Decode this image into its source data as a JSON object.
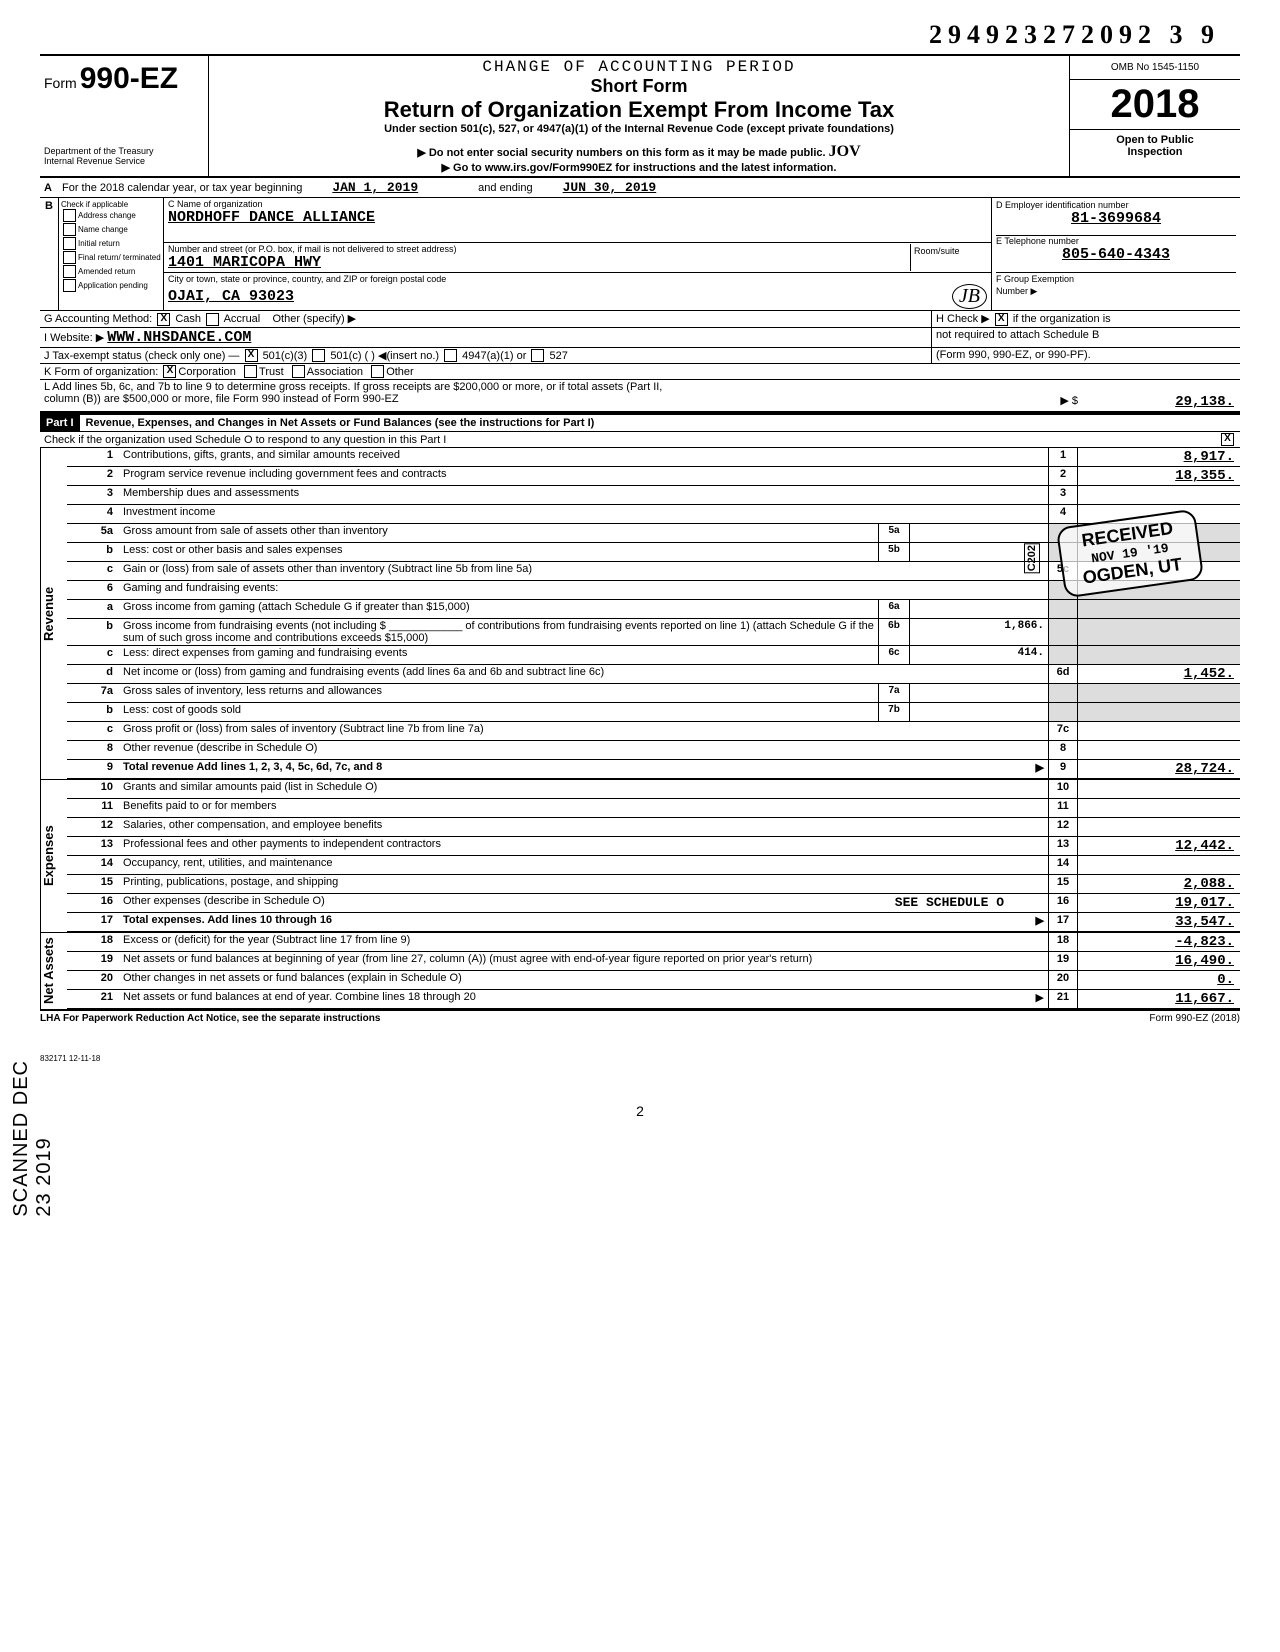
{
  "stamp_number": "294923272092 3  9",
  "header": {
    "form_prefix": "Form",
    "form_no": "990-EZ",
    "change_period": "CHANGE OF ACCOUNTING PERIOD",
    "short_form": "Short Form",
    "title": "Return of Organization Exempt From Income Tax",
    "subtitle": "Under section 501(c), 527, or 4947(a)(1) of the Internal Revenue Code (except private foundations)",
    "warn": "▶ Do not enter social security numbers on this form as it may be made public.",
    "goto": "▶ Go to www.irs.gov/Form990EZ for instructions and the latest information.",
    "dept1": "Department of the Treasury",
    "dept2": "Internal Revenue Service",
    "omb": "OMB No 1545-1150",
    "year": "2018",
    "open": "Open to Public",
    "inspection": "Inspection",
    "handwritten_init": "JOV"
  },
  "lineA": {
    "prefix": "A",
    "text1": "For the 2018 calendar year, or tax year beginning",
    "begin": "JAN 1, 2019",
    "text2": "and ending",
    "end": "JUN 30, 2019"
  },
  "sectionB": {
    "b": "B",
    "check_if": "Check if applicable",
    "opts": [
      "Address change",
      "Name change",
      "Initial return",
      "Final return/ terminated",
      "Amended return",
      "Application pending"
    ],
    "c_label": "C Name of organization",
    "org_name": "NORDHOFF DANCE ALLIANCE",
    "street_label": "Number and street (or P.O. box, if mail is not delivered to street address)",
    "room_label": "Room/suite",
    "street": "1401 MARICOPA HWY",
    "city_label": "City or town, state or province, country, and ZIP or foreign postal code",
    "city": "OJAI, CA  93023",
    "d_label": "D Employer identification number",
    "ein": "81-3699684",
    "e_label": "E Telephone number",
    "phone": "805-640-4343",
    "f_label": "F Group Exemption",
    "f_label2": "Number ▶",
    "hand_init": "JB"
  },
  "lineG": {
    "label": "G  Accounting Method:",
    "cash": "Cash",
    "accrual": "Accrual",
    "other": "Other (specify) ▶"
  },
  "lineH": {
    "text": "H Check ▶",
    "box": "X",
    "text2": "if the organization is",
    "text3": "not required to attach Schedule B"
  },
  "lineI": {
    "label": "I   Website: ▶",
    "val": "WWW.NHSDANCE.COM"
  },
  "lineJ": {
    "label": "J   Tax-exempt status (check only one) —",
    "a": "501(c)(3)",
    "b": "501(c) (",
    "c": ") ◀(insert no.)",
    "d": "4947(a)(1) or",
    "e": "527",
    "tail": "(Form 990, 990-EZ, or 990-PF)."
  },
  "lineK": {
    "label": "K  Form of organization:",
    "a": "Corporation",
    "b": "Trust",
    "c": "Association",
    "d": "Other"
  },
  "lineL": {
    "text": "L  Add lines 5b, 6c, and 7b to line 9 to determine gross receipts. If gross receipts are $200,000 or more, or if total assets (Part II,",
    "text2": "column (B)) are $500,000 or more, file Form 990 instead of Form 990-EZ",
    "arrow": "▶  $",
    "val": "29,138."
  },
  "part1": {
    "label": "Part I",
    "title": "Revenue, Expenses, and Changes in Net Assets or Fund Balances (see the instructions for Part I)",
    "check_text": "Check if the organization used Schedule O to respond to any question in this Part I",
    "check_val": "X"
  },
  "vlabels": {
    "revenue": "Revenue",
    "expenses": "Expenses",
    "netassets": "Net Assets"
  },
  "stamps": {
    "received": "RECEIVED",
    "date": "NOV 19",
    "year": "'19",
    "city": "OGDEN, UT",
    "scanned": "SCANNED",
    "scandate": "DEC 23 2019",
    "c202": "C202"
  },
  "lines": [
    {
      "n": "1",
      "desc": "Contributions, gifts, grants, and similar amounts received",
      "rn": "1",
      "amt": "8,917."
    },
    {
      "n": "2",
      "desc": "Program service revenue including government fees and contracts",
      "rn": "2",
      "amt": "18,355."
    },
    {
      "n": "3",
      "desc": "Membership dues and assessments",
      "rn": "3",
      "amt": ""
    },
    {
      "n": "4",
      "desc": "Investment income",
      "rn": "4",
      "amt": ""
    },
    {
      "n": "5a",
      "desc": "Gross amount from sale of assets other than inventory",
      "sub": "5a",
      "subval": ""
    },
    {
      "n": "b",
      "desc": "Less: cost or other basis and sales expenses",
      "sub": "5b",
      "subval": ""
    },
    {
      "n": "c",
      "desc": "Gain or (loss) from sale of assets other than inventory (Subtract line 5b from line 5a)",
      "rn": "5c",
      "amt": ""
    },
    {
      "n": "6",
      "desc": "Gaming and fundraising events:"
    },
    {
      "n": "a",
      "desc": "Gross income from gaming (attach Schedule G if greater than $15,000)",
      "sub": "6a",
      "subval": ""
    },
    {
      "n": "b",
      "desc": "Gross income from fundraising events (not including $ ____________ of contributions from fundraising events reported on line 1) (attach Schedule G if the sum of such gross income and contributions exceeds $15,000)",
      "sub": "6b",
      "subval": "1,866."
    },
    {
      "n": "c",
      "desc": "Less: direct expenses from gaming and fundraising events",
      "sub": "6c",
      "subval": "414."
    },
    {
      "n": "d",
      "desc": "Net income or (loss) from gaming and fundraising events (add lines 6a and 6b and subtract line 6c)",
      "rn": "6d",
      "amt": "1,452."
    },
    {
      "n": "7a",
      "desc": "Gross sales of inventory, less returns and allowances",
      "sub": "7a",
      "subval": ""
    },
    {
      "n": "b",
      "desc": "Less: cost of goods sold",
      "sub": "7b",
      "subval": ""
    },
    {
      "n": "c",
      "desc": "Gross profit or (loss) from sales of inventory (Subtract line 7b from line 7a)",
      "rn": "7c",
      "amt": ""
    },
    {
      "n": "8",
      "desc": "Other revenue (describe in Schedule O)",
      "rn": "8",
      "amt": ""
    },
    {
      "n": "9",
      "desc": "Total revenue  Add lines 1, 2, 3, 4, 5c, 6d, 7c, and 8",
      "rn": "9",
      "amt": "28,724.",
      "bold": true,
      "arrow": true
    }
  ],
  "exp_lines": [
    {
      "n": "10",
      "desc": "Grants and similar amounts paid (list in Schedule O)",
      "rn": "10",
      "amt": ""
    },
    {
      "n": "11",
      "desc": "Benefits paid to or for members",
      "rn": "11",
      "amt": ""
    },
    {
      "n": "12",
      "desc": "Salaries, other compensation, and employee benefits",
      "rn": "12",
      "amt": ""
    },
    {
      "n": "13",
      "desc": "Professional fees and other payments to independent contractors",
      "rn": "13",
      "amt": "12,442."
    },
    {
      "n": "14",
      "desc": "Occupancy, rent, utilities, and maintenance",
      "rn": "14",
      "amt": ""
    },
    {
      "n": "15",
      "desc": "Printing, publications, postage, and shipping",
      "rn": "15",
      "amt": "2,088."
    },
    {
      "n": "16",
      "desc": "Other expenses (describe in Schedule O)",
      "extra": "SEE SCHEDULE O",
      "rn": "16",
      "amt": "19,017."
    },
    {
      "n": "17",
      "desc": "Total expenses. Add lines 10 through 16",
      "rn": "17",
      "amt": "33,547.",
      "bold": true,
      "arrow": true
    }
  ],
  "na_lines": [
    {
      "n": "18",
      "desc": "Excess or (deficit) for the year (Subtract line 17 from line 9)",
      "rn": "18",
      "amt": "-4,823."
    },
    {
      "n": "19",
      "desc": "Net assets or fund balances at beginning of year (from line 27, column (A)) (must agree with end-of-year figure reported on prior year's return)",
      "rn": "19",
      "amt": "16,490."
    },
    {
      "n": "20",
      "desc": "Other changes in net assets or fund balances (explain in Schedule O)",
      "rn": "20",
      "amt": "0."
    },
    {
      "n": "21",
      "desc": "Net assets or fund balances at end of year. Combine lines 18 through 20",
      "rn": "21",
      "amt": "11,667.",
      "arrow": true
    }
  ],
  "footer": {
    "lha": "LHA  For Paperwork Reduction Act Notice, see the separate instructions",
    "formref": "Form 990-EZ (2018)",
    "code": "832171  12-11-18",
    "page": "2"
  }
}
